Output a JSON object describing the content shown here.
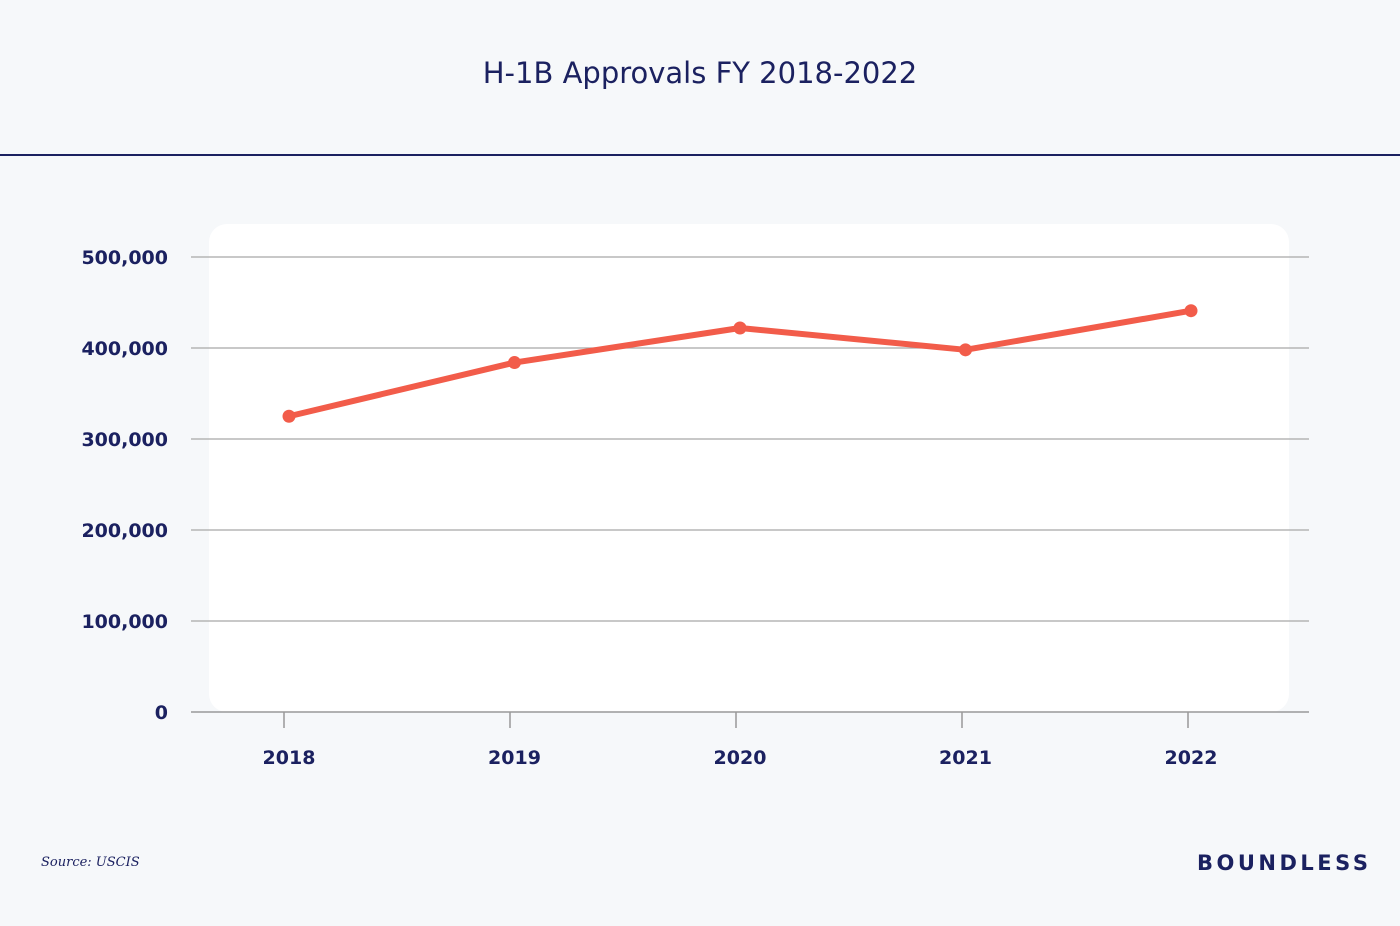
{
  "chart_data": {
    "type": "line",
    "title": "H-1B Approvals FY 2018-2022",
    "categories": [
      "2018",
      "2019",
      "2020",
      "2021",
      "2022"
    ],
    "values": [
      325000,
      384000,
      422000,
      398000,
      441000
    ],
    "ylim": [
      0,
      500000
    ],
    "yticks": [
      "0",
      "100,000",
      "200,000",
      "300,000",
      "400,000",
      "500,000"
    ],
    "ytick_values": [
      0,
      100000,
      200000,
      300000,
      400000,
      500000
    ],
    "xlabel": "",
    "ylabel": "",
    "grid": true,
    "line_color": "#f25c4a"
  },
  "footer": {
    "source": "Source: USCIS",
    "logo": "BOUNDLESS"
  }
}
